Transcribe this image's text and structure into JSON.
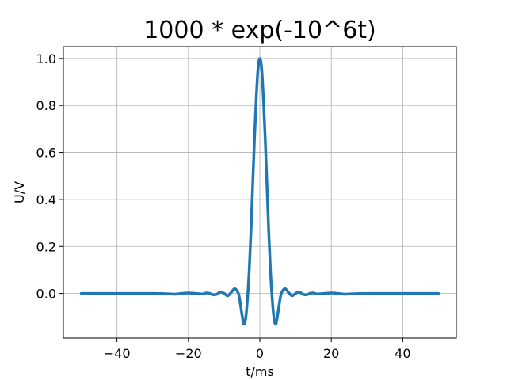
{
  "chart_data": {
    "type": "line",
    "title": "1000 * exp(-10^6t)",
    "xlabel": "t/ms",
    "ylabel": "U/V",
    "xlim": [
      -55,
      55
    ],
    "ylim": [
      -0.19,
      1.05
    ],
    "xticks": [
      -40,
      -20,
      0,
      20,
      40
    ],
    "xtick_labels": [
      "−40",
      "−20",
      "0",
      "20",
      "40"
    ],
    "yticks": [
      0.0,
      0.2,
      0.4,
      0.6,
      0.8,
      1.0
    ],
    "ytick_labels": [
      "0.0",
      "0.2",
      "0.4",
      "0.6",
      "0.8",
      "1.0"
    ],
    "grid": true,
    "line_color": "#1f77b4",
    "series": [
      {
        "x": [
          -50,
          -40,
          -30,
          -25,
          -24,
          -23,
          -22,
          -20,
          -18,
          -16,
          -15,
          -14,
          -13,
          -12,
          -11,
          -10,
          -9,
          -8,
          -7,
          -6,
          -5.5,
          -5,
          -4.5,
          -4,
          -3.5,
          -3,
          -2.5,
          -2,
          -1.5,
          -1,
          -0.5,
          0,
          0.5,
          1,
          1.5,
          2,
          2.5,
          3,
          3.5,
          4,
          4.5,
          5,
          5.5,
          6,
          7,
          8,
          9,
          10,
          11,
          12,
          13,
          14,
          15,
          16,
          18,
          20,
          22,
          23,
          24,
          25,
          30,
          40,
          50
        ],
        "y": [
          0.0,
          0.0,
          0.0,
          -0.002,
          -0.003,
          -0.002,
          0.0,
          0.002,
          0.0,
          -0.002,
          0.002,
          0.0,
          -0.006,
          -0.003,
          0.006,
          0.0,
          -0.01,
          0.005,
          0.02,
          0.0,
          -0.04,
          -0.09,
          -0.13,
          -0.11,
          -0.03,
          0.09,
          0.26,
          0.46,
          0.66,
          0.83,
          0.96,
          1.0,
          0.96,
          0.83,
          0.66,
          0.46,
          0.26,
          0.09,
          -0.03,
          -0.11,
          -0.13,
          -0.09,
          -0.04,
          0.0,
          0.02,
          0.005,
          -0.01,
          0.0,
          0.006,
          -0.003,
          -0.006,
          0.0,
          0.002,
          -0.002,
          0.0,
          0.002,
          0.0,
          -0.002,
          -0.003,
          -0.002,
          0.0,
          0.0,
          0.0
        ]
      }
    ]
  }
}
